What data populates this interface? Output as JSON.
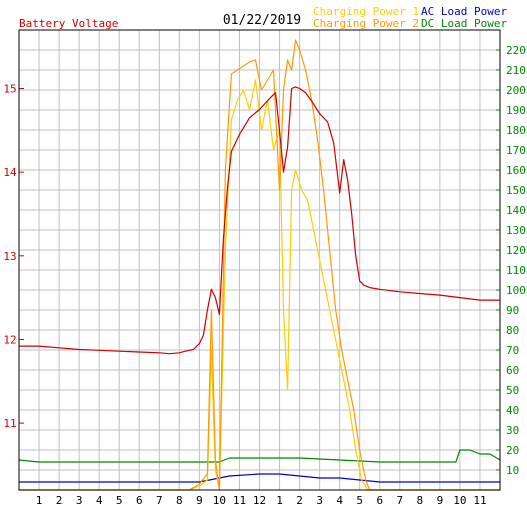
{
  "chart_data": {
    "type": "line",
    "title": "01/22/2019",
    "left_axis_label": "Battery Voltage",
    "colors": {
      "battery_voltage": "#cc0000",
      "charging_power_1": "#ffcc00",
      "charging_power_2": "#ff9900",
      "ac_load_power": "#0000cc",
      "dc_load_power": "#008800",
      "left_axis": "#cc0000",
      "right_axis": "#008800",
      "grid": "#c0c0c0"
    },
    "legend": [
      {
        "label": "Charging Power 1",
        "color": "#ffcc00"
      },
      {
        "label": "AC Load Power",
        "color": "#0000cc"
      },
      {
        "label": "Charging Power 2",
        "color": "#ff9900"
      },
      {
        "label": "DC Load Power",
        "color": "#008800"
      }
    ],
    "x_axis": {
      "range_hours": [
        0,
        24
      ],
      "tick_labels": [
        "1",
        "2",
        "3",
        "4",
        "5",
        "6",
        "7",
        "8",
        "9",
        "10",
        "11",
        "12",
        "1",
        "2",
        "3",
        "4",
        "5",
        "6",
        "7",
        "8",
        "9",
        "10",
        "11"
      ]
    },
    "y_left": {
      "range": [
        10.2,
        15.7
      ],
      "ticks": [
        "11",
        "12",
        "13",
        "14",
        "15"
      ]
    },
    "y_right": {
      "range": [
        0,
        230
      ],
      "ticks": [
        "10",
        "20",
        "30",
        "40",
        "50",
        "60",
        "70",
        "80",
        "90",
        "100",
        "110",
        "120",
        "130",
        "140",
        "150",
        "160",
        "170",
        "180",
        "190",
        "200",
        "210",
        "220"
      ]
    },
    "series": [
      {
        "name": "Battery Voltage",
        "axis": "left",
        "x": [
          0,
          1,
          2,
          3,
          4,
          5,
          6,
          7,
          7.5,
          8,
          8.3,
          8.7,
          9.0,
          9.2,
          9.4,
          9.6,
          9.8,
          10.0,
          10.2,
          10.4,
          10.6,
          10.8,
          11.0,
          11.5,
          12.0,
          12.5,
          12.8,
          13.0,
          13.2,
          13.4,
          13.6,
          13.8,
          14.0,
          14.3,
          14.6,
          15.0,
          15.4,
          15.7,
          16.0,
          16.2,
          16.4,
          16.6,
          16.8,
          17.0,
          17.2,
          17.5,
          18,
          19,
          20,
          21,
          22,
          23,
          24
        ],
        "y": [
          11.92,
          11.92,
          11.9,
          11.88,
          11.87,
          11.86,
          11.85,
          11.84,
          11.83,
          11.84,
          11.86,
          11.88,
          11.95,
          12.05,
          12.35,
          12.6,
          12.5,
          12.3,
          13.2,
          13.8,
          14.25,
          14.35,
          14.45,
          14.65,
          14.75,
          14.88,
          14.95,
          14.5,
          14.0,
          14.3,
          15.0,
          15.02,
          15.0,
          14.95,
          14.85,
          14.7,
          14.6,
          14.35,
          13.75,
          14.15,
          13.9,
          13.5,
          13.0,
          12.7,
          12.65,
          12.62,
          12.6,
          12.57,
          12.55,
          12.53,
          12.5,
          12.47,
          12.47
        ]
      },
      {
        "name": "Charging Power 1",
        "axis": "right",
        "x": [
          0,
          8.5,
          9.0,
          9.4,
          9.6,
          9.8,
          10.0,
          10.3,
          10.6,
          10.9,
          11.2,
          11.5,
          11.8,
          12.1,
          12.4,
          12.7,
          13.0,
          13.2,
          13.4,
          13.6,
          13.8,
          14.1,
          14.4,
          14.7,
          15.0,
          15.3,
          15.6,
          15.9,
          16.2,
          16.5,
          16.8,
          17.1,
          17.4,
          24
        ],
        "y": [
          0,
          0,
          2,
          5,
          70,
          10,
          0,
          120,
          185,
          195,
          200,
          190,
          205,
          180,
          195,
          170,
          180,
          90,
          50,
          150,
          160,
          150,
          145,
          130,
          115,
          100,
          85,
          70,
          55,
          40,
          20,
          5,
          0,
          0
        ]
      },
      {
        "name": "Charging Power 2",
        "axis": "right",
        "x": [
          0,
          8.5,
          9.0,
          9.4,
          9.6,
          9.8,
          10.0,
          10.3,
          10.6,
          10.9,
          11.2,
          11.5,
          11.8,
          12.1,
          12.4,
          12.7,
          13.0,
          13.2,
          13.4,
          13.6,
          13.8,
          14.0,
          14.3,
          14.6,
          14.9,
          15.2,
          15.5,
          15.8,
          16.1,
          16.4,
          16.7,
          17.0,
          17.3,
          17.5,
          24
        ],
        "y": [
          0,
          0,
          3,
          8,
          90,
          15,
          0,
          160,
          208,
          210,
          212,
          214,
          215,
          200,
          205,
          210,
          150,
          200,
          215,
          210,
          225,
          220,
          210,
          195,
          175,
          150,
          120,
          90,
          70,
          55,
          40,
          20,
          5,
          0,
          0
        ]
      },
      {
        "name": "AC Load Power",
        "axis": "right",
        "x": [
          0,
          2,
          4,
          6,
          8,
          9,
          9.5,
          10.5,
          12,
          13,
          14,
          15,
          16,
          17,
          18,
          19,
          20,
          21,
          22,
          23,
          24
        ],
        "y": [
          4,
          4,
          4,
          4,
          4,
          4,
          5,
          7,
          8,
          8,
          7,
          6,
          6,
          5,
          4,
          4,
          4,
          4,
          4,
          4,
          4
        ]
      },
      {
        "name": "DC Load Power",
        "axis": "right",
        "x": [
          0,
          1,
          2,
          4,
          6,
          8,
          10,
          10.5,
          12,
          14,
          16,
          18,
          20,
          21.8,
          22.0,
          22.5,
          23,
          23.5,
          24
        ],
        "y": [
          15,
          14,
          14,
          14,
          14,
          14,
          14,
          16,
          16,
          16,
          15,
          14,
          14,
          14,
          20,
          20,
          18,
          18,
          15
        ]
      }
    ]
  }
}
